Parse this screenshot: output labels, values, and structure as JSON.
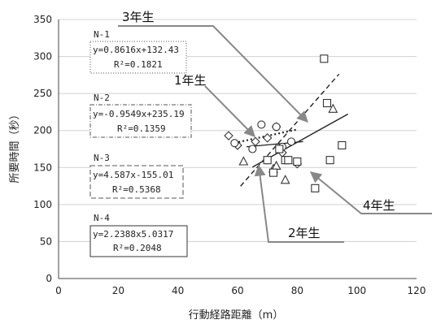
{
  "chart_data": {
    "type": "scatter",
    "xlabel": "行動経路距離（m）",
    "ylabel": "所要時間（秒）",
    "xlim": [
      0,
      120
    ],
    "ylim": [
      0,
      350
    ],
    "x_ticks": [
      "0",
      "20",
      "40",
      "60",
      "80",
      "100",
      "120"
    ],
    "y_ticks": [
      "0",
      "50",
      "100",
      "150",
      "200",
      "250",
      "300",
      "350"
    ],
    "grid": "horizontal",
    "series": [
      {
        "marker": "diamond",
        "line": "dotted",
        "points": [
          [
            57,
            193
          ],
          [
            60,
            180
          ],
          [
            66,
            185
          ],
          [
            70,
            190
          ],
          [
            73,
            205
          ],
          [
            75,
            170
          ],
          [
            80,
            155
          ]
        ]
      },
      {
        "marker": "circle",
        "line": "solid",
        "points": [
          [
            59,
            183
          ],
          [
            65,
            175
          ],
          [
            68,
            208
          ],
          [
            73,
            205
          ],
          [
            75,
            178
          ],
          [
            78,
            185
          ],
          [
            70,
            160
          ]
        ]
      },
      {
        "marker": "triangle",
        "line": "dashed",
        "points": [
          [
            62,
            158
          ],
          [
            72,
            148
          ],
          [
            73,
            152
          ],
          [
            76,
            133
          ],
          [
            92,
            229
          ]
        ]
      },
      {
        "marker": "square",
        "line": "solid",
        "points": [
          [
            70,
            160
          ],
          [
            72,
            143
          ],
          [
            74,
            175
          ],
          [
            76,
            160
          ],
          [
            80,
            158
          ],
          [
            89,
            297
          ],
          [
            90,
            237
          ],
          [
            86,
            122
          ],
          [
            91,
            160
          ],
          [
            95,
            180
          ],
          [
            77,
            160
          ]
        ]
      }
    ],
    "trendlines": [
      {
        "style": "dotted",
        "x_range": [
          59,
          80
        ]
      },
      {
        "style": "solid-thin",
        "x_range": [
          63,
          82
        ]
      },
      {
        "style": "dashed",
        "x_range": [
          61,
          94
        ]
      },
      {
        "style": "solid",
        "x_range": [
          65,
          97
        ]
      }
    ],
    "annotations": {
      "boxes": [
        {
          "label": "N-1",
          "equation": "y=0.8616x+132.43",
          "r2": "R²=0.1821"
        },
        {
          "label": "N-2",
          "equation": "y=-0.9549x+235.19",
          "r2": "R²=0.1359"
        },
        {
          "label": "N-3",
          "equation": "y=4.587x-155.01",
          "r2": "R²=0.5368"
        },
        {
          "label": "N-4",
          "equation": "y=2.2388x5.0317",
          "r2": "R²=0.2048"
        }
      ],
      "grades": [
        "3年生",
        "1年生",
        "2年生",
        "4年生"
      ]
    }
  }
}
